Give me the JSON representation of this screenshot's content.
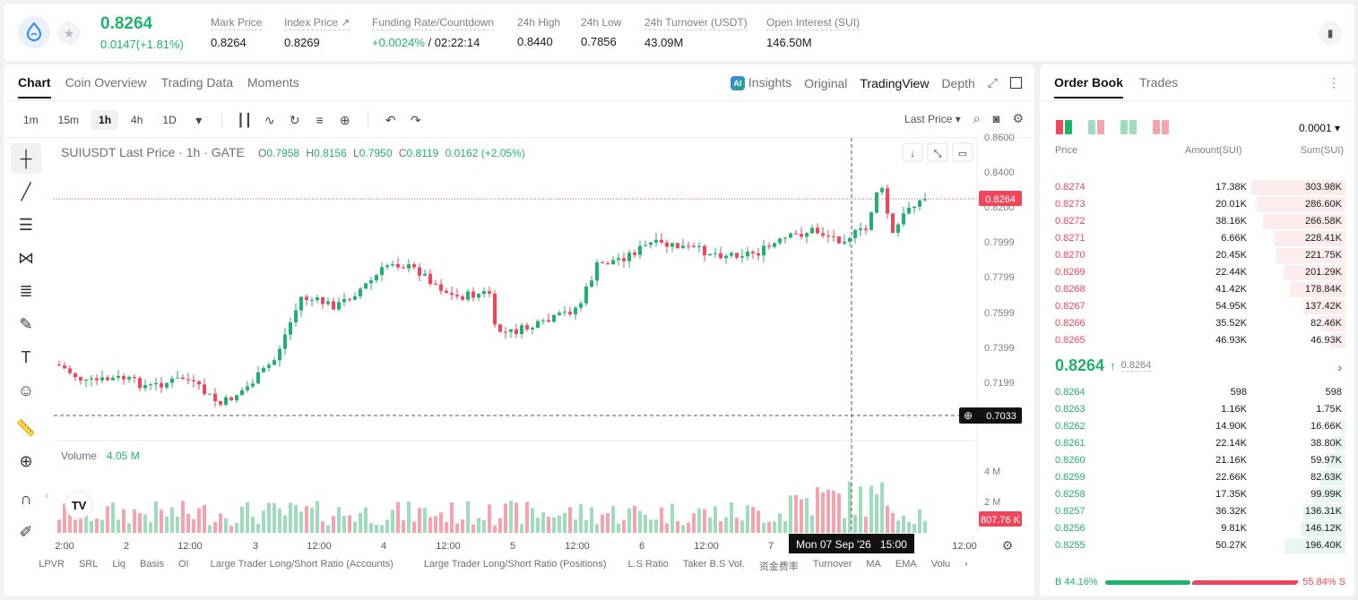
{
  "header": {
    "price": "0.8264",
    "change": "0.0147(+1.81%)",
    "stats": [
      {
        "label": "Mark Price",
        "value": "0.8264"
      },
      {
        "label": "Index Price ↗",
        "value": "0.8269"
      },
      {
        "label": "Funding Rate/Countdown",
        "value_green": "+0.0024%",
        "value": " / 02:22:14"
      },
      {
        "label": "24h High",
        "value": "0.8440"
      },
      {
        "label": "24h Low",
        "value": "0.7856"
      },
      {
        "label": "24h Turnover (USDT)",
        "value": "43.09M"
      },
      {
        "label": "Open Interest (SUI)",
        "value": "146.50M"
      }
    ]
  },
  "chart_tabs": [
    "Chart",
    "Coin Overview",
    "Trading Data",
    "Moments"
  ],
  "view_tabs": {
    "insights": "Insights",
    "original": "Original",
    "tradingview": "TradingView",
    "depth": "Depth"
  },
  "timeframes": [
    "1m",
    "15m",
    "1h",
    "4h",
    "1D"
  ],
  "price_source": "Last Price ▾",
  "legend": {
    "symbol": "SUIUSDT Last Price · 1h · GATE",
    "o_label": "O",
    "o": "0.7958",
    "h_label": "H",
    "h": "0.8156",
    "l_label": "L",
    "l": "0.7950",
    "c_label": "C",
    "c": "0.8119",
    "chg": "0.0162 (+2.05%)"
  },
  "volume_label": "Volume",
  "volume_value": "4.05 M",
  "price_axis": [
    "0.8600",
    "0.8400",
    "0.8200",
    "0.7999",
    "0.7799",
    "0.7599",
    "0.7399",
    "0.7199"
  ],
  "volume_axis": [
    "4 M",
    "2 M"
  ],
  "last_price_tag": "0.8264",
  "crosshair_price_tag": "0.7033",
  "volume_tag": "807.76 K",
  "time_axis": [
    "2:00",
    "2",
    "12:00",
    "3",
    "12:00",
    "4",
    "12:00",
    "5",
    "12:00",
    "6",
    "12:00",
    "7",
    "12:00"
  ],
  "crosshair_time": "Mon 07 Sep '26   15:00",
  "indicators": [
    "LPVR",
    "SRL",
    "Liq",
    "Basis",
    "OI",
    "Large Trader Long/Short Ratio (Accounts)",
    "Large Trader Long/Short Ratio (Positions)",
    "L.S Ratio",
    "Taker B.S Vol.",
    "资金费率",
    "Turnover",
    "MA",
    "EMA",
    "Volu"
  ],
  "colors": {
    "up": "#20b26c",
    "down": "#f0455b",
    "up_vol": "#9fdcbd",
    "down_vol": "#f5a3ae"
  },
  "orderbook": {
    "tabs": [
      "Order Book",
      "Trades"
    ],
    "precision": "0.0001",
    "headers": {
      "price": "Price",
      "amount": "Amount(SUI)",
      "sum": "Sum(SUI)"
    },
    "asks": [
      {
        "price": "0.8274",
        "amount": "17.38K",
        "sum": "303.98K",
        "depth": 1.0
      },
      {
        "price": "0.8273",
        "amount": "20.01K",
        "sum": "286.60K",
        "depth": 0.94
      },
      {
        "price": "0.8272",
        "amount": "38.16K",
        "sum": "266.58K",
        "depth": 0.88
      },
      {
        "price": "0.8271",
        "amount": "6.66K",
        "sum": "228.41K",
        "depth": 0.75
      },
      {
        "price": "0.8270",
        "amount": "20.45K",
        "sum": "221.75K",
        "depth": 0.73
      },
      {
        "price": "0.8269",
        "amount": "22.44K",
        "sum": "201.29K",
        "depth": 0.66
      },
      {
        "price": "0.8268",
        "amount": "41.42K",
        "sum": "178.84K",
        "depth": 0.59
      },
      {
        "price": "0.8267",
        "amount": "54.95K",
        "sum": "137.42K",
        "depth": 0.45
      },
      {
        "price": "0.8266",
        "amount": "35.52K",
        "sum": "82.46K",
        "depth": 0.27
      },
      {
        "price": "0.8265",
        "amount": "46.93K",
        "sum": "46.93K",
        "depth": 0.15
      }
    ],
    "mid_price": "0.8264",
    "mid_mark": "0.8264",
    "bids": [
      {
        "price": "0.8264",
        "amount": "598",
        "sum": "598",
        "depth": 0.0
      },
      {
        "price": "0.8263",
        "amount": "1.16K",
        "sum": "1.75K",
        "depth": 0.01
      },
      {
        "price": "0.8262",
        "amount": "14.90K",
        "sum": "16.66K",
        "depth": 0.05
      },
      {
        "price": "0.8261",
        "amount": "22.14K",
        "sum": "38.80K",
        "depth": 0.13
      },
      {
        "price": "0.8260",
        "amount": "21.16K",
        "sum": "59.97K",
        "depth": 0.2
      },
      {
        "price": "0.8259",
        "amount": "22.66K",
        "sum": "82.63K",
        "depth": 0.27
      },
      {
        "price": "0.8258",
        "amount": "17.35K",
        "sum": "99.99K",
        "depth": 0.33
      },
      {
        "price": "0.8257",
        "amount": "36.32K",
        "sum": "136.31K",
        "depth": 0.45
      },
      {
        "price": "0.8256",
        "amount": "9.81K",
        "sum": "146.12K",
        "depth": 0.48
      },
      {
        "price": "0.8255",
        "amount": "50.27K",
        "sum": "196.40K",
        "depth": 0.65
      }
    ],
    "buy_ratio": "B 44.16%",
    "sell_ratio": "55.84% S"
  }
}
